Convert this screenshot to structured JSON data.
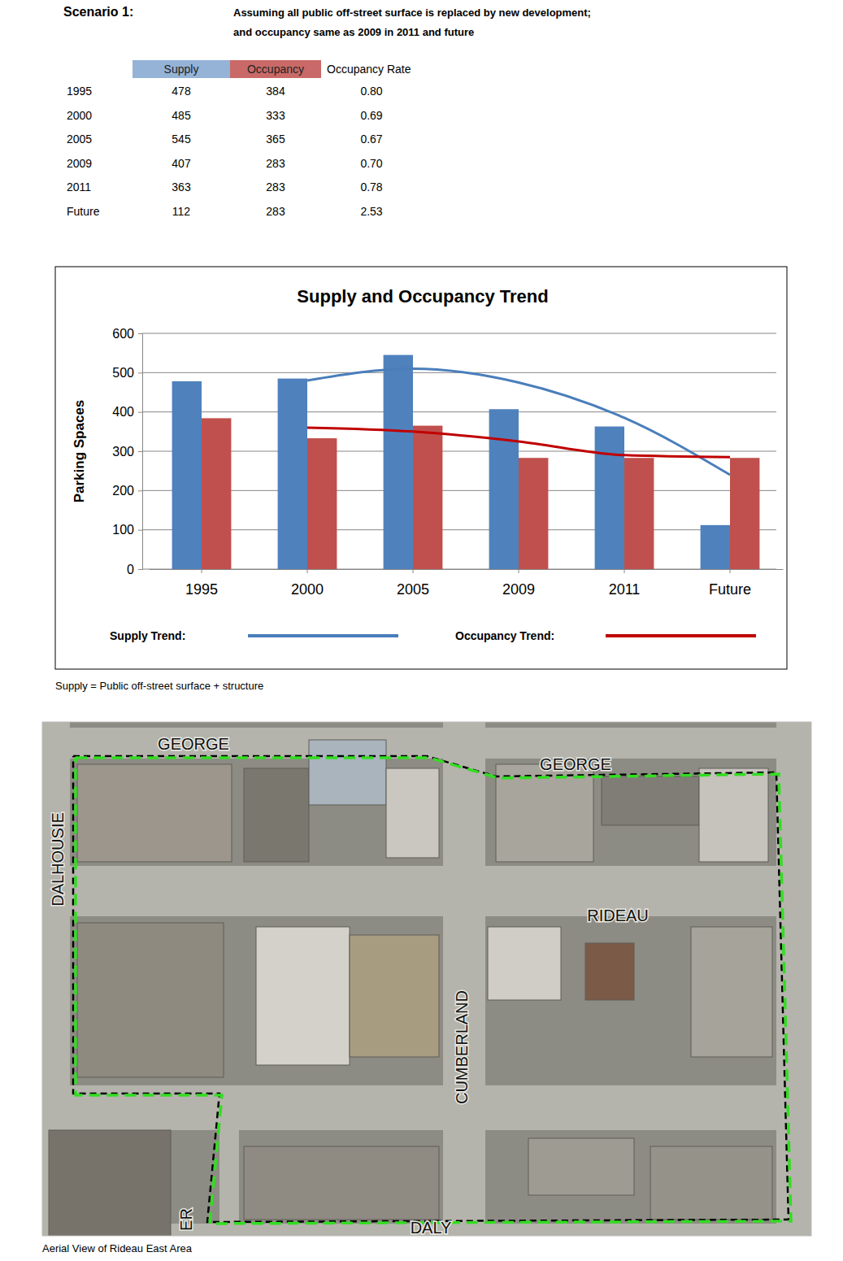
{
  "header": {
    "title": "Scenario 1:",
    "description": [
      "Assuming all public off-street surface is replaced by new development;",
      "and occupancy same as 2009 in 2011 and future"
    ]
  },
  "table": {
    "rate_header": "Occupancy Rate",
    "rates": [
      "0.80",
      "0.69",
      "0.67",
      "0.70",
      "0.78",
      "2.53"
    ]
  },
  "chart_data": {
    "type": "bar",
    "title": "Supply and Occupancy Trend",
    "y_label": "Parking Spaces",
    "categories": [
      "1995",
      "2000",
      "2005",
      "2009",
      "2011",
      "Future"
    ],
    "series": [
      {
        "name": "Supply",
        "color": "#4f81bd",
        "values": [
          478,
          485,
          545,
          407,
          363,
          112
        ]
      },
      {
        "name": "Occupancy",
        "color": "#c0504d",
        "values": [
          384,
          333,
          365,
          283,
          283,
          283
        ]
      },
      {
        "name": "Supply Trend:",
        "type": "line",
        "color": "#4a7ebb",
        "values": [
          null,
          480,
          510,
          475,
          385,
          240
        ]
      },
      {
        "name": "Occupancy Trend:",
        "type": "line",
        "color": "#c00000",
        "values": [
          null,
          360,
          350,
          325,
          290,
          285
        ]
      }
    ],
    "ylim": [
      0,
      600
    ],
    "yticks": [
      0,
      100,
      200,
      300,
      400,
      500,
      600
    ],
    "grid": true,
    "legend": "bottom"
  },
  "note": "Supply = Public off-street surface + structure",
  "map": {
    "street_labels": [
      "GEORGE",
      "GEORGE",
      "DALHOUSIE",
      "RIDEAU",
      "CUMBERLAND",
      "ER",
      "DALY"
    ],
    "caption": "Aerial View of Rideau East Area"
  }
}
